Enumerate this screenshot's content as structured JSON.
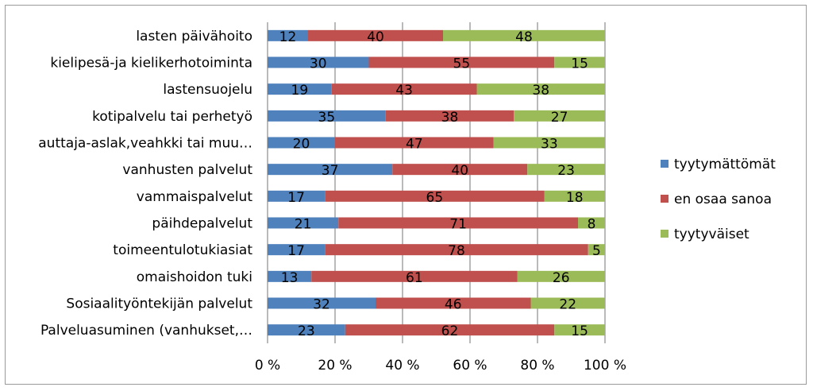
{
  "chart_data": {
    "type": "bar",
    "orientation": "horizontal",
    "stacked": true,
    "percent": true,
    "title": "",
    "xlabel": "",
    "ylabel": "",
    "xlim": [
      0,
      100
    ],
    "x_ticks": [
      "0 %",
      "20 %",
      "40 %",
      "60 %",
      "80 %",
      "100 %"
    ],
    "grid": "vertical",
    "legend_position": "right",
    "categories": [
      "lasten päivähoito",
      "kielipesä-ja kielikerhotoiminta",
      "lastensuojelu",
      "kotipalvelu tai perhetyö",
      "auttaja-aslak,veahkki tai muu…",
      "vanhusten palvelut",
      "vammaispalvelut",
      "päihdepalvelut",
      "toimeentulotukiasiat",
      "omaishoidon tuki",
      "Sosiaalityöntekijän palvelut",
      "Palveluasuminen (vanhukset,…"
    ],
    "series": [
      {
        "name": "tyytymättömät",
        "color": "#4f81bd",
        "values": [
          12,
          30,
          19,
          35,
          20,
          37,
          17,
          21,
          17,
          13,
          32,
          23
        ]
      },
      {
        "name": "en osaa sanoa",
        "color": "#c0504d",
        "values": [
          40,
          55,
          43,
          38,
          47,
          40,
          65,
          71,
          78,
          61,
          46,
          62
        ]
      },
      {
        "name": "tyytyväiset",
        "color": "#9bbb59",
        "values": [
          48,
          15,
          38,
          27,
          33,
          23,
          18,
          8,
          5,
          26,
          22,
          15
        ]
      }
    ]
  }
}
